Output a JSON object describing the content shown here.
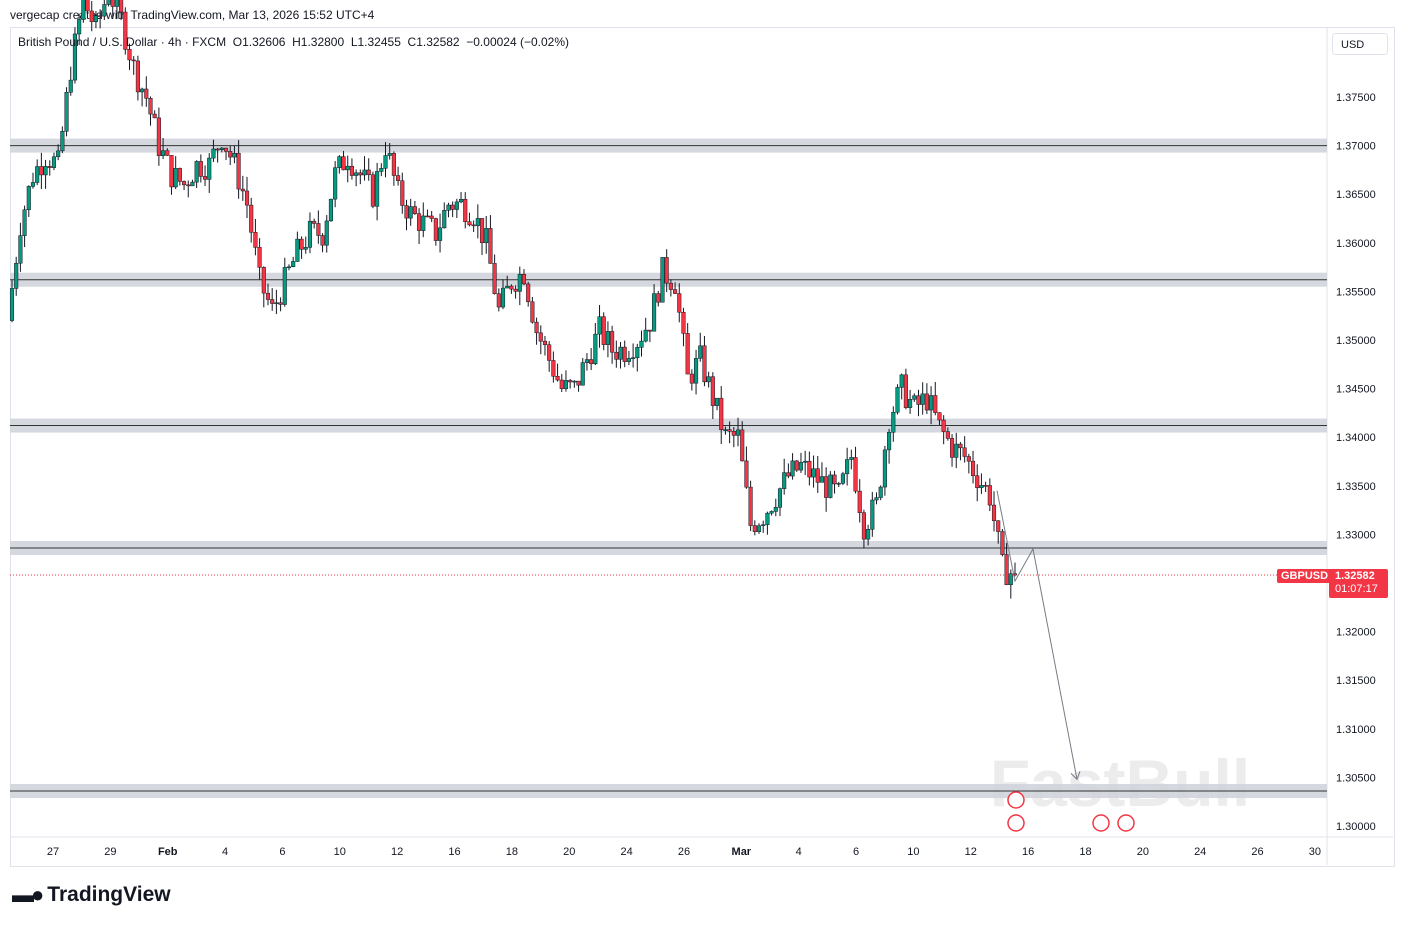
{
  "credit": "vergecap created with TradingView.com, Mar 13, 2026 15:52 UTC+4",
  "legend": {
    "symbol": "British Pound / U.S. Dollar · 4h · FXCM",
    "ohlc": "O1.32606  H1.32800  L1.32455  C1.32582  −0.00024 (−0.02%)"
  },
  "currency": "USD",
  "brand": "TradingView",
  "watermark": "FastBull",
  "last_price": {
    "symbol": "GBPUSD",
    "price": "1.32582",
    "countdown": "01:07:17",
    "color": "#f23645"
  },
  "chart_data": {
    "type": "candlestick",
    "ylim": [
      1.2975,
      1.3855
    ],
    "y_ticks": [
      "1.37500",
      "1.37000",
      "1.36500",
      "1.36000",
      "1.35500",
      "1.35000",
      "1.34500",
      "1.34000",
      "1.33500",
      "1.33000",
      "1.32000",
      "1.31500",
      "1.31000",
      "1.30500",
      "1.30000"
    ],
    "x_ticks": [
      "27",
      "29",
      "Feb",
      "4",
      "6",
      "10",
      "12",
      "16",
      "18",
      "20",
      "24",
      "26",
      "Mar",
      "4",
      "6",
      "10",
      "12",
      "16",
      "18",
      "20",
      "24",
      "26",
      "30"
    ],
    "closes": [
      1.352,
      1.362,
      1.367,
      1.369,
      1.368,
      1.378,
      1.385,
      1.382,
      1.386,
      1.383,
      1.378,
      1.375,
      1.37,
      1.367,
      1.366,
      1.368,
      1.368,
      1.371,
      1.368,
      1.364,
      1.356,
      1.353,
      1.356,
      1.359,
      1.361,
      1.361,
      1.367,
      1.369,
      1.367,
      1.365,
      1.37,
      1.365,
      1.363,
      1.362,
      1.361,
      1.364,
      1.364,
      1.363,
      1.36,
      1.353,
      1.356,
      1.357,
      1.351,
      1.348,
      1.345,
      1.345,
      1.348,
      1.351,
      1.349,
      1.349,
      1.35,
      1.352,
      1.357,
      1.356,
      1.346,
      1.348,
      1.344,
      1.34,
      1.34,
      1.331,
      1.332,
      1.334,
      1.336,
      1.337,
      1.336,
      1.335,
      1.334,
      1.338,
      1.331,
      1.333,
      1.342,
      1.345,
      1.343,
      1.344,
      1.341,
      1.339,
      1.338,
      1.336,
      1.334,
      1.3265,
      1.32582
    ],
    "zones": [
      1.37,
      1.3562,
      1.3412,
      1.3286,
      1.3036
    ],
    "projection": [
      1.3345,
      1.3252,
      1.3285,
      1.3048
    ],
    "colors": {
      "up": "#089981",
      "down": "#f23645",
      "wick": "#131722",
      "zone": "#d1d4dc"
    }
  }
}
